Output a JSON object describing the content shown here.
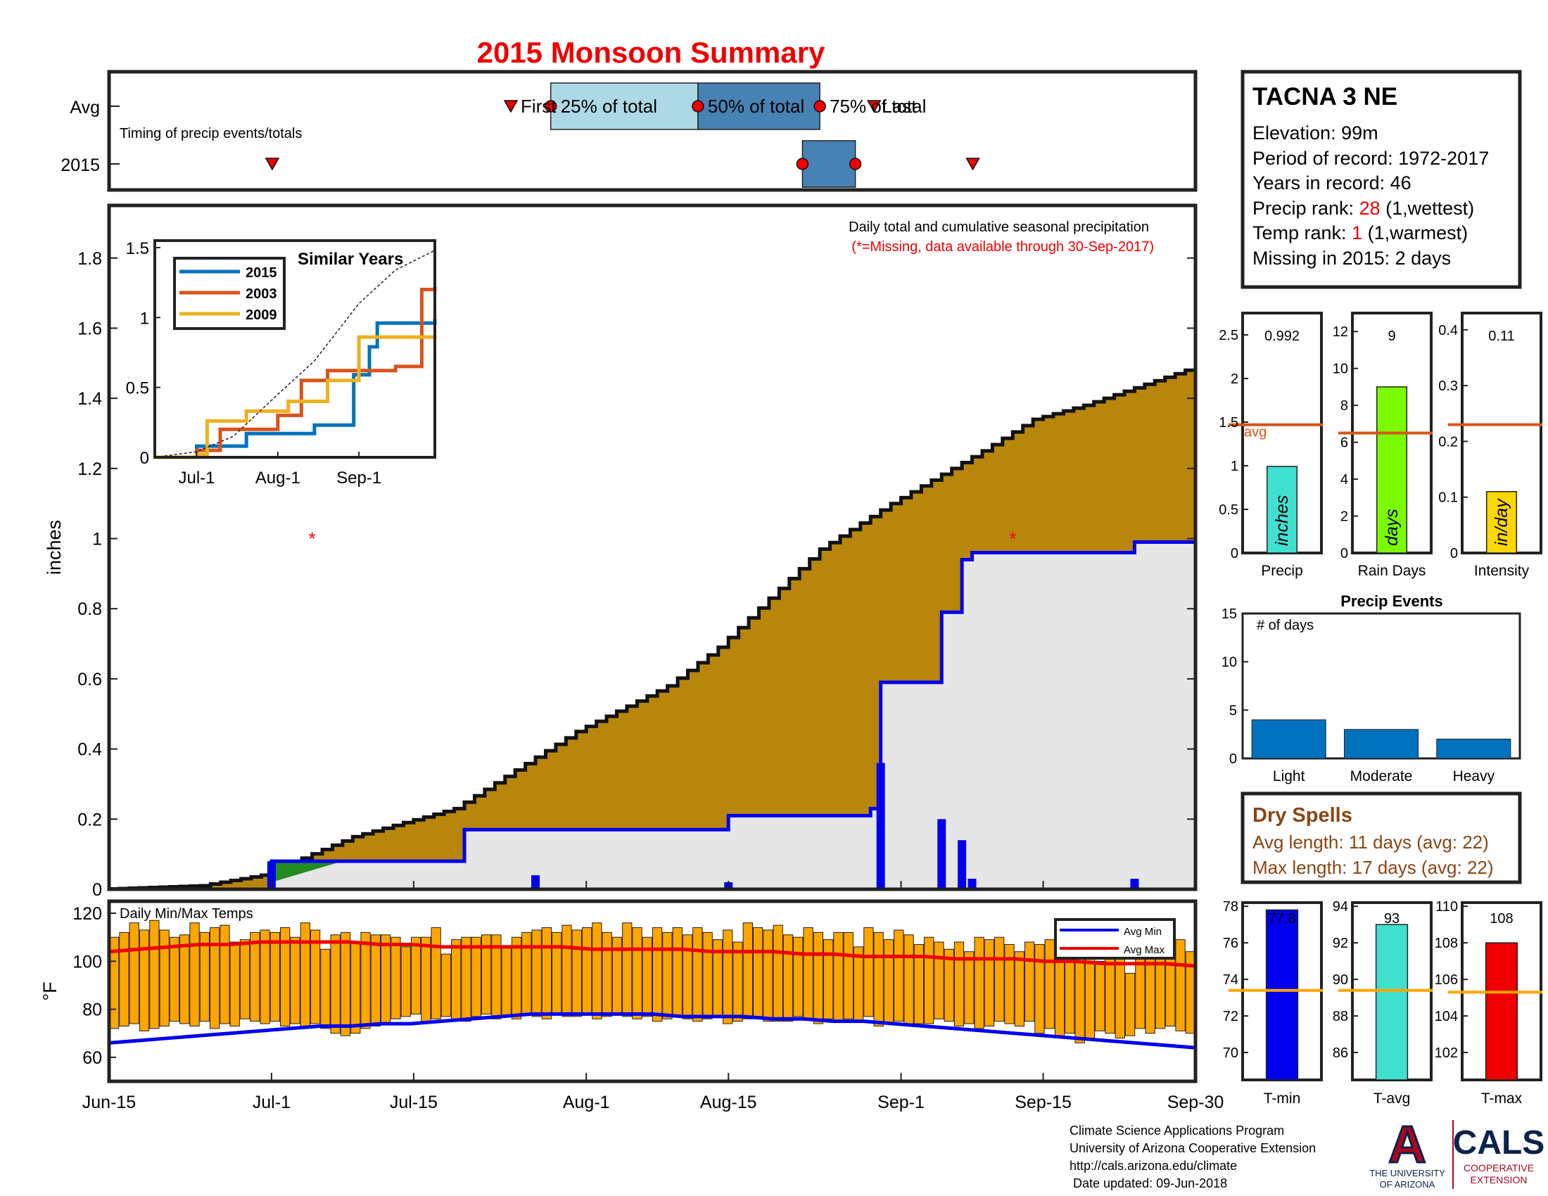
{
  "title": "2015 Monsoon Summary",
  "timing": {
    "caption": "Timing of precip events/totals",
    "rows": [
      "Avg",
      "2015"
    ],
    "labels": {
      "first": "First",
      "p25": "25% of total",
      "p50": "50% of total",
      "p75": "75% of total",
      "last": "Last"
    },
    "avg": {
      "first": 39.5,
      "p25": 43.5,
      "p50": 58,
      "p75": 70,
      "last": 75
    },
    "y2015": {
      "first": 16,
      "p25": 68.5,
      "p50": 68.5,
      "p75": 73.5,
      "last": 85
    },
    "colors": {
      "q1": "#add8e6",
      "q2": "#4682b4"
    }
  },
  "station": {
    "name": "TACNA 3 NE",
    "elevation": "Elevation: 99m",
    "period": "Period of record: 1972-2017",
    "years": "Years in record: 46",
    "precip_rank_prefix": "Precip rank: ",
    "precip_rank_value": "28",
    "precip_rank_suffix": " (1,wettest)",
    "temp_rank_prefix": "Temp rank: ",
    "temp_rank_value": "1",
    "temp_rank_suffix": " (1,warmest)",
    "missing": "Missing in 2015: 2 days"
  },
  "main_chart": {
    "note_line1": "Daily total and cumulative seasonal precipitation",
    "note_line2": "(*=Missing, data available through 30-Sep-2017)",
    "ylabel": "inches",
    "y_ticks": [
      "0",
      "0.2",
      "0.4",
      "0.6",
      "0.8",
      "1",
      "1.2",
      "1.4",
      "1.6",
      "1.8"
    ],
    "x_ticks": [
      "Jun-15",
      "Jul-1",
      "Jul-15",
      "Aug-1",
      "Aug-15",
      "Sep-1",
      "Sep-15",
      "Sep-30"
    ]
  },
  "inset": {
    "title": "Similar Years",
    "y_ticks": [
      "0",
      "0.5",
      "1",
      "1.5"
    ],
    "x_ticks": [
      "Jul-1",
      "Aug-1",
      "Sep-1"
    ],
    "legend": [
      "2015",
      "2003",
      "2009"
    ]
  },
  "temp_chart": {
    "title": "Daily Min/Max Temps",
    "ylabel": "°F",
    "y_ticks": [
      "60",
      "80",
      "100",
      "120"
    ],
    "legend": [
      "Avg Min",
      "Avg Max"
    ]
  },
  "summary_bars": {
    "precip": {
      "label": "Precip",
      "value_text": "0.992",
      "unit": "inches",
      "avg_text": "avg",
      "ticks": [
        "0",
        "0.5",
        "1",
        "1.5",
        "2",
        "2.5"
      ]
    },
    "rain_days": {
      "label": "Rain Days",
      "value_text": "9",
      "unit": "days",
      "ticks": [
        "0",
        "2",
        "4",
        "6",
        "8",
        "10",
        "12"
      ]
    },
    "intensity": {
      "label": "Intensity",
      "value_text": "0.11",
      "unit": "in/day",
      "ticks": [
        "0",
        "0.1",
        "0.2",
        "0.3",
        "0.4"
      ]
    }
  },
  "events": {
    "title": "Precip Events",
    "ylabel": "# of days",
    "ticks": [
      "0",
      "5",
      "10",
      "15"
    ]
  },
  "dry_spells": {
    "title": "Dry Spells",
    "avg_length": "Avg length: 11 days (avg: 22)",
    "max_length": "Max length: 17 days (avg: 22)"
  },
  "temp_bars": {
    "tmin": {
      "label": "T-min",
      "value_text": "77.8",
      "ticks": [
        "70",
        "72",
        "74",
        "76",
        "78"
      ]
    },
    "tavg": {
      "label": "T-avg",
      "value_text": "93",
      "ticks": [
        "86",
        "88",
        "90",
        "92",
        "94"
      ]
    },
    "tmax": {
      "label": "T-max",
      "value_text": "108",
      "ticks": [
        "102",
        "104",
        "106",
        "108",
        "110"
      ]
    }
  },
  "footer": {
    "line1": "Climate Science Applications Program",
    "line2": "University of Arizona Cooperative Extension",
    "line3": "http://cals.arizona.edu/climate",
    "line4": " Date updated: 09-Jun-2018"
  },
  "logo_ua": {
    "letter": "A",
    "line1": "THE UNIVERSITY",
    "line2": "OF ARIZONA"
  },
  "logo_cals": {
    "name": "CALS",
    "line1": "COOPERATIVE",
    "line2": "EXTENSION"
  },
  "chart_data": [
    {
      "type": "area",
      "title": "Daily total and cumulative seasonal precipitation",
      "ylabel": "inches",
      "ylim": [
        0,
        1.95
      ],
      "x_range": [
        "2015-06-15",
        "2015-09-30"
      ],
      "series": [
        {
          "name": "2015",
          "x": [
            "Jun-15",
            "Jun-30",
            "Jul-1",
            "Jul-19",
            "Jul-20",
            "Aug-15",
            "Aug-29",
            "Aug-30",
            "Sep-5",
            "Sep-7",
            "Sep-8",
            "Sep-24",
            "Sep-30"
          ],
          "values": [
            0,
            0,
            0.08,
            0.08,
            0.17,
            0.21,
            0.23,
            0.59,
            0.79,
            0.94,
            0.96,
            0.99,
            0.992
          ]
        },
        {
          "name": "avg",
          "x": [
            "Jun-15",
            "Jun-25",
            "Jul-1",
            "Jul-10",
            "Jul-20",
            "Aug-1",
            "Aug-10",
            "Aug-15",
            "Aug-25",
            "Sep-1",
            "Sep-10",
            "Sep-15",
            "Sep-20",
            "Sep-30"
          ],
          "values": [
            0,
            0.01,
            0.04,
            0.15,
            0.23,
            0.45,
            0.58,
            0.69,
            0.97,
            1.1,
            1.25,
            1.34,
            1.38,
            1.48
          ]
        }
      ],
      "daily_precip": {
        "x": [
          "Jul-1",
          "Jul-27",
          "Aug-15",
          "Aug-30",
          "Sep-5",
          "Sep-7",
          "Sep-8",
          "Sep-24"
        ],
        "values": [
          0.08,
          0.04,
          0.02,
          0.36,
          0.2,
          0.14,
          0.03,
          0.03
        ]
      },
      "missing_days": [
        "Jul-5",
        "Sep-12"
      ]
    },
    {
      "type": "line",
      "title": "Similar Years",
      "ylim": [
        0,
        1.5
      ],
      "series": [
        {
          "name": "2015",
          "x": [
            "Jun-15",
            "Jul-1",
            "Jul-20",
            "Aug-15",
            "Aug-30",
            "Sep-5",
            "Sep-8",
            "Sep-30"
          ],
          "values": [
            0,
            0.08,
            0.17,
            0.23,
            0.59,
            0.79,
            0.96,
            0.99
          ]
        },
        {
          "name": "2003",
          "x": [
            "Jun-15",
            "Jul-1",
            "Jul-10",
            "Aug-1",
            "Aug-10",
            "Aug-20",
            "Sep-1",
            "Sep-15",
            "Sep-25",
            "Sep-30"
          ],
          "values": [
            0,
            0.05,
            0.2,
            0.3,
            0.55,
            0.62,
            0.62,
            0.65,
            1.2,
            1.22
          ]
        },
        {
          "name": "2009",
          "x": [
            "Jun-15",
            "Jul-1",
            "Jul-5",
            "Jul-20",
            "Aug-5",
            "Aug-20",
            "Sep-1",
            "Sep-30"
          ],
          "values": [
            0,
            0.02,
            0.26,
            0.33,
            0.4,
            0.55,
            0.86,
            0.87
          ]
        },
        {
          "x": [
            "Jun-15",
            "Jul-1",
            "Jul-15",
            "Aug-1",
            "Aug-15",
            "Sep-1",
            "Sep-15",
            "Sep-30"
          ],
          "values": [
            0,
            0.04,
            0.15,
            0.45,
            0.69,
            1.1,
            1.34,
            1.48
          ]
        }
      ]
    },
    {
      "type": "bar",
      "title": "Daily Min/Max Temps",
      "ylabel": "°F",
      "ylim": [
        50,
        125
      ],
      "series": [
        {
          "name": "Daily Min",
          "values": [
            72,
            73,
            74,
            71,
            72,
            73,
            75,
            74,
            73,
            75,
            72,
            74,
            73,
            76,
            75,
            74,
            75,
            73,
            74,
            73,
            74,
            72,
            70,
            69,
            70,
            72,
            73,
            74,
            76,
            77,
            78,
            75,
            76,
            77,
            76,
            75,
            77,
            78,
            76,
            77,
            76,
            78,
            77,
            76,
            78,
            77,
            77,
            78,
            76,
            77,
            78,
            77,
            76,
            77,
            75,
            76,
            77,
            76,
            75,
            76,
            77,
            74,
            75,
            76,
            77,
            75,
            75,
            75,
            77,
            76,
            74,
            76,
            75,
            76,
            75,
            77,
            73,
            74,
            75,
            74,
            74,
            74,
            76,
            75,
            73,
            74,
            72,
            73,
            75,
            74,
            73,
            75,
            70,
            72,
            68,
            70,
            66,
            68,
            71,
            70,
            68,
            69,
            72,
            70,
            72,
            73,
            71,
            70
          ]
        },
        {
          "name": "Daily Max",
          "values": [
            110,
            112,
            116,
            113,
            117,
            113,
            110,
            111,
            116,
            112,
            114,
            115,
            108,
            109,
            112,
            113,
            112,
            114,
            110,
            116,
            113,
            105,
            111,
            112,
            108,
            112,
            111,
            111,
            110,
            106,
            110,
            110,
            114,
            103,
            109,
            110,
            110,
            111,
            111,
            106,
            110,
            112,
            113,
            114,
            112,
            115,
            113,
            114,
            116,
            112,
            110,
            116,
            114,
            110,
            114,
            112,
            114,
            111,
            114,
            112,
            109,
            113,
            108,
            116,
            114,
            113,
            115,
            111,
            110,
            114,
            112,
            109,
            112,
            112,
            106,
            114,
            112,
            109,
            113,
            111,
            107,
            110,
            108,
            105,
            108,
            104,
            110,
            109,
            110,
            107,
            104,
            108,
            107,
            109,
            102,
            103,
            106,
            108,
            100,
            110,
            102,
            95,
            105,
            104,
            103,
            108,
            109,
            104
          ]
        },
        {
          "name": "Avg Min",
          "values": [
            66,
            67,
            68,
            69,
            70,
            71,
            72,
            73,
            73,
            74,
            74,
            75,
            76,
            77,
            78,
            78,
            78,
            78,
            78,
            77,
            77,
            77,
            76,
            76,
            75,
            75,
            74,
            73,
            72,
            71,
            70,
            69,
            68,
            67,
            66,
            65,
            64
          ]
        },
        {
          "name": "Avg Max",
          "values": [
            104,
            105,
            106,
            107,
            107,
            108,
            108,
            108,
            108,
            107,
            107,
            106,
            106,
            106,
            106,
            106,
            105,
            105,
            105,
            105,
            104,
            104,
            104,
            103,
            103,
            102,
            102,
            102,
            101,
            101,
            101,
            100,
            100,
            99,
            99,
            99,
            98
          ]
        }
      ]
    },
    {
      "type": "bar",
      "categories": [
        "Precip",
        "Rain Days",
        "Intensity"
      ],
      "values": [
        0.992,
        9,
        0.11
      ],
      "avg": [
        1.47,
        6.5,
        0.23
      ]
    },
    {
      "type": "bar",
      "title": "Precip Events",
      "categories": [
        "Light",
        "Moderate",
        "Heavy"
      ],
      "values": [
        4,
        3,
        2
      ],
      "ylim": [
        0,
        15
      ]
    },
    {
      "type": "bar",
      "categories": [
        "T-min",
        "T-avg",
        "T-max"
      ],
      "values": [
        77.8,
        93,
        108
      ],
      "avg": [
        73.4,
        89.4,
        105.3
      ]
    }
  ]
}
